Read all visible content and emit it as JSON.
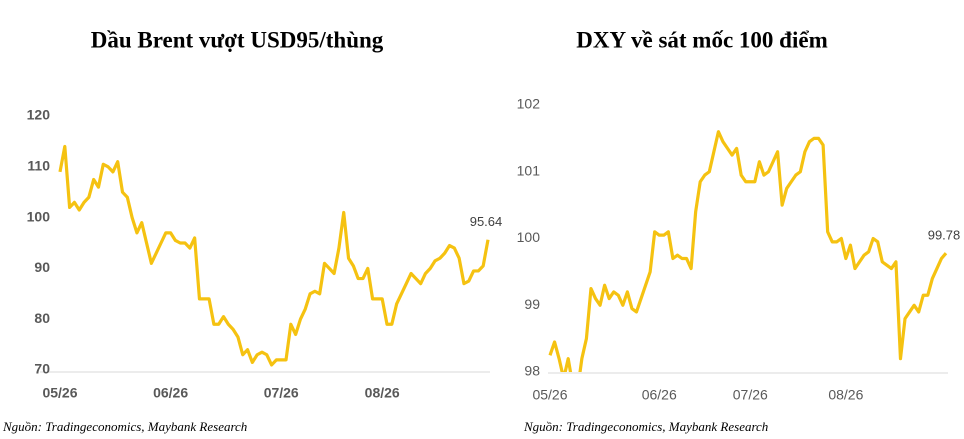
{
  "chart_data": [
    {
      "type": "line",
      "title": "Dầu Brent vượt USD95/thùng",
      "source": "Nguồn: Tradingeconomics, Maybank Research",
      "color": "#f5c211",
      "categories": [
        "05/26",
        null,
        null,
        null,
        null,
        null,
        null,
        null,
        null,
        null,
        null,
        null,
        null,
        null,
        null,
        null,
        null,
        null,
        null,
        null,
        null,
        null,
        null,
        "06/26",
        null,
        null,
        null,
        null,
        null,
        null,
        null,
        null,
        null,
        null,
        null,
        null,
        null,
        null,
        null,
        null,
        null,
        null,
        null,
        null,
        null,
        null,
        "07/26",
        null,
        null,
        null,
        null,
        null,
        null,
        null,
        null,
        null,
        null,
        null,
        null,
        null,
        null,
        null,
        null,
        null,
        null,
        null,
        null,
        "08/26",
        null,
        null,
        null,
        null,
        null,
        null,
        null,
        null,
        null,
        null,
        null,
        null,
        null,
        null,
        null,
        null,
        null,
        null,
        null,
        null,
        null,
        null
      ],
      "values": [
        109,
        114,
        102,
        103,
        101.5,
        103,
        104,
        107.5,
        106,
        110.5,
        110,
        109,
        111,
        105,
        104,
        100,
        97,
        99,
        95,
        91,
        93,
        95,
        97,
        97,
        95.5,
        95,
        95,
        94,
        96,
        84,
        84,
        84,
        79,
        79,
        80.5,
        79,
        78,
        76.5,
        73,
        74,
        71.5,
        73,
        73.5,
        73,
        71,
        72,
        72,
        72,
        79,
        77,
        80,
        82,
        85,
        85.5,
        85,
        91,
        90,
        89,
        94,
        101,
        92,
        90.5,
        88,
        88,
        90,
        84,
        84,
        84,
        79,
        79,
        83,
        85,
        87,
        89,
        88,
        87,
        89,
        90,
        91.5,
        92,
        93,
        94.5,
        94,
        92,
        87,
        87.5,
        89.5,
        89.5,
        90.5,
        95.64
      ],
      "ylim": [
        70,
        120
      ],
      "yticks": [
        70,
        80,
        90,
        100,
        110,
        120
      ]
    },
    {
      "type": "line",
      "title": "DXY về sát mốc 100 điểm",
      "source": "Nguồn: Tradingeconomics, Maybank Research",
      "color": "#f5c211",
      "categories": [
        "05/26",
        null,
        null,
        null,
        null,
        null,
        null,
        null,
        null,
        null,
        null,
        null,
        null,
        null,
        null,
        null,
        null,
        null,
        null,
        null,
        null,
        null,
        null,
        null,
        "06/26",
        null,
        null,
        null,
        null,
        null,
        null,
        null,
        null,
        null,
        null,
        null,
        null,
        null,
        null,
        null,
        null,
        null,
        null,
        null,
        "07/26",
        null,
        null,
        null,
        null,
        null,
        null,
        null,
        null,
        null,
        null,
        null,
        null,
        null,
        null,
        null,
        null,
        null,
        null,
        null,
        null,
        "08/26",
        null,
        null,
        null,
        null,
        null,
        null,
        null,
        null,
        null,
        null,
        null,
        null,
        null,
        null,
        null,
        null,
        null,
        null,
        null,
        null,
        null,
        null
      ],
      "values": [
        98.25,
        98.45,
        98.2,
        97.9,
        98.2,
        97.8,
        97.7,
        98.2,
        98.5,
        99.25,
        99.1,
        99.0,
        99.3,
        99.1,
        99.2,
        99.15,
        99.0,
        99.2,
        98.95,
        98.9,
        99.1,
        99.3,
        99.5,
        100.1,
        100.05,
        100.05,
        100.1,
        99.7,
        99.75,
        99.7,
        99.7,
        99.55,
        100.4,
        100.85,
        100.95,
        101.0,
        101.3,
        101.6,
        101.45,
        101.35,
        101.25,
        101.35,
        100.95,
        100.85,
        100.85,
        100.85,
        101.15,
        100.95,
        101.0,
        101.15,
        101.3,
        100.5,
        100.75,
        100.85,
        100.95,
        101.0,
        101.3,
        101.45,
        101.5,
        101.5,
        101.4,
        100.1,
        99.95,
        99.95,
        100.0,
        99.7,
        99.9,
        99.55,
        99.65,
        99.75,
        99.8,
        100.0,
        99.95,
        99.65,
        99.6,
        99.55,
        99.65,
        98.2,
        98.8,
        98.9,
        99.0,
        98.9,
        99.15,
        99.15,
        99.4,
        99.55,
        99.7,
        99.78
      ],
      "ylim": [
        98,
        102
      ],
      "yticks": [
        98,
        99,
        100,
        101,
        102
      ]
    }
  ]
}
